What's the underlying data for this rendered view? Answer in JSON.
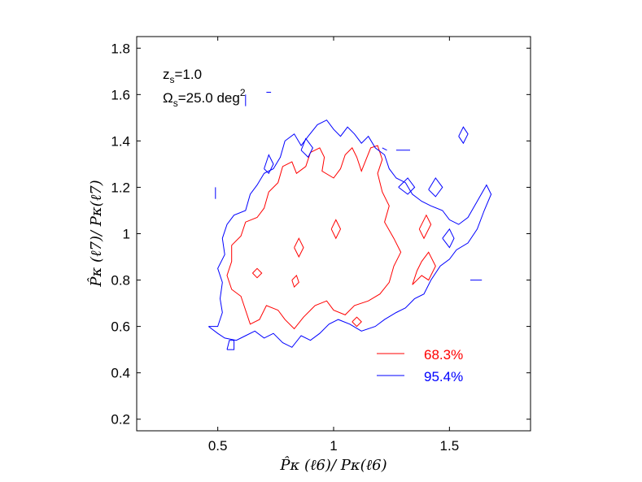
{
  "chart_data": {
    "type": "line",
    "title": "",
    "xlabel": "P̂κ (ℓ6)/ Pκ(ℓ6)",
    "ylabel": "P̂κ (ℓ7)/ Pκ(ℓ7)",
    "xlim": [
      0.15,
      1.85
    ],
    "ylim": [
      0.15,
      1.85
    ],
    "x_ticks": [
      0.5,
      1,
      1.5
    ],
    "x_tick_labels": [
      "0.5",
      "1",
      "1.5"
    ],
    "y_ticks": [
      0.2,
      0.4,
      0.6,
      0.8,
      1.0,
      1.2,
      1.4,
      1.6,
      1.8
    ],
    "y_tick_labels": [
      "0.2",
      "0.4",
      "0.6",
      "0.8",
      "1",
      "1.2",
      "1.4",
      "1.6",
      "1.8"
    ],
    "grid": false,
    "annotations": {
      "redshift": {
        "main": "z",
        "sub": "s",
        "rest": "=1.0"
      },
      "area": {
        "main": "Ω",
        "sub": "s",
        "rest": "=25.0 deg",
        "sup": "2"
      }
    },
    "legend_position": "bottom-right",
    "series": [
      {
        "name": "68.3%",
        "color": "#ff0000",
        "contours": [
          [
            [
              0.56,
              0.95
            ],
            [
              0.6,
              0.99
            ],
            [
              0.62,
              1.05
            ],
            [
              0.67,
              1.07
            ],
            [
              0.7,
              1.11
            ],
            [
              0.72,
              1.18
            ],
            [
              0.76,
              1.22
            ],
            [
              0.78,
              1.29
            ],
            [
              0.82,
              1.31
            ],
            [
              0.84,
              1.26
            ],
            [
              0.88,
              1.29
            ],
            [
              0.9,
              1.35
            ],
            [
              0.94,
              1.37
            ],
            [
              0.96,
              1.33
            ],
            [
              0.95,
              1.27
            ],
            [
              1.0,
              1.24
            ],
            [
              1.03,
              1.28
            ],
            [
              1.05,
              1.34
            ],
            [
              1.08,
              1.37
            ],
            [
              1.1,
              1.33
            ],
            [
              1.12,
              1.27
            ],
            [
              1.14,
              1.32
            ],
            [
              1.16,
              1.37
            ],
            [
              1.19,
              1.38
            ],
            [
              1.21,
              1.32
            ],
            [
              1.19,
              1.26
            ],
            [
              1.21,
              1.18
            ],
            [
              1.24,
              1.12
            ],
            [
              1.22,
              1.05
            ],
            [
              1.26,
              0.98
            ],
            [
              1.29,
              0.92
            ],
            [
              1.26,
              0.86
            ],
            [
              1.24,
              0.79
            ],
            [
              1.2,
              0.74
            ],
            [
              1.15,
              0.71
            ],
            [
              1.09,
              0.69
            ],
            [
              1.05,
              0.65
            ],
            [
              1.0,
              0.67
            ],
            [
              0.97,
              0.71
            ],
            [
              0.92,
              0.69
            ],
            [
              0.87,
              0.64
            ],
            [
              0.83,
              0.59
            ],
            [
              0.79,
              0.63
            ],
            [
              0.76,
              0.67
            ],
            [
              0.71,
              0.69
            ],
            [
              0.68,
              0.63
            ],
            [
              0.64,
              0.61
            ],
            [
              0.62,
              0.67
            ],
            [
              0.6,
              0.73
            ],
            [
              0.56,
              0.76
            ],
            [
              0.54,
              0.82
            ],
            [
              0.56,
              0.88
            ],
            [
              0.56,
              0.95
            ]
          ],
          [
            [
              0.83,
              0.94
            ],
            [
              0.85,
              0.98
            ],
            [
              0.87,
              0.94
            ],
            [
              0.85,
              0.9
            ],
            [
              0.83,
              0.94
            ]
          ],
          [
            [
              0.99,
              1.02
            ],
            [
              1.01,
              1.06
            ],
            [
              1.03,
              1.02
            ],
            [
              1.01,
              0.98
            ],
            [
              0.99,
              1.02
            ]
          ],
          [
            [
              0.65,
              0.83
            ],
            [
              0.67,
              0.85
            ],
            [
              0.69,
              0.83
            ],
            [
              0.67,
              0.81
            ],
            [
              0.65,
              0.83
            ]
          ],
          [
            [
              0.82,
              0.8
            ],
            [
              0.84,
              0.82
            ],
            [
              0.85,
              0.79
            ],
            [
              0.83,
              0.77
            ],
            [
              0.82,
              0.8
            ]
          ],
          [
            [
              1.08,
              0.62
            ],
            [
              1.1,
              0.64
            ],
            [
              1.12,
              0.62
            ],
            [
              1.1,
              0.6
            ],
            [
              1.08,
              0.62
            ]
          ],
          [
            [
              1.34,
              0.78
            ],
            [
              1.38,
              0.82
            ],
            [
              1.41,
              0.8
            ],
            [
              1.44,
              0.86
            ],
            [
              1.41,
              0.92
            ],
            [
              1.38,
              0.88
            ],
            [
              1.36,
              0.84
            ],
            [
              1.34,
              0.78
            ]
          ],
          [
            [
              1.37,
              1.02
            ],
            [
              1.4,
              1.08
            ],
            [
              1.42,
              1.04
            ],
            [
              1.39,
              0.98
            ],
            [
              1.37,
              1.02
            ]
          ]
        ]
      },
      {
        "name": "95.4%",
        "color": "#0000ff",
        "contours": [
          [
            [
              0.46,
              0.6
            ],
            [
              0.5,
              0.6
            ],
            [
              0.52,
              0.66
            ],
            [
              0.51,
              0.72
            ],
            [
              0.52,
              0.79
            ],
            [
              0.5,
              0.85
            ],
            [
              0.53,
              0.91
            ],
            [
              0.52,
              0.98
            ],
            [
              0.54,
              1.04
            ],
            [
              0.57,
              1.08
            ],
            [
              0.62,
              1.1
            ],
            [
              0.64,
              1.17
            ],
            [
              0.67,
              1.21
            ],
            [
              0.7,
              1.26
            ],
            [
              0.74,
              1.28
            ],
            [
              0.77,
              1.33
            ],
            [
              0.79,
              1.4
            ],
            [
              0.83,
              1.43
            ],
            [
              0.86,
              1.38
            ],
            [
              0.89,
              1.42
            ],
            [
              0.93,
              1.47
            ],
            [
              0.97,
              1.49
            ],
            [
              1.0,
              1.45
            ],
            [
              1.03,
              1.42
            ],
            [
              1.06,
              1.46
            ],
            [
              1.09,
              1.43
            ],
            [
              1.12,
              1.39
            ],
            [
              1.15,
              1.42
            ],
            [
              1.18,
              1.37
            ],
            [
              1.22,
              1.34
            ],
            [
              1.24,
              1.28
            ],
            [
              1.27,
              1.24
            ],
            [
              1.31,
              1.22
            ],
            [
              1.34,
              1.17
            ],
            [
              1.38,
              1.14
            ],
            [
              1.42,
              1.12
            ],
            [
              1.47,
              1.1
            ],
            [
              1.5,
              1.06
            ],
            [
              1.54,
              1.04
            ],
            [
              1.58,
              1.07
            ],
            [
              1.62,
              1.14
            ],
            [
              1.66,
              1.21
            ],
            [
              1.68,
              1.17
            ],
            [
              1.65,
              1.1
            ],
            [
              1.62,
              1.02
            ],
            [
              1.58,
              0.96
            ],
            [
              1.53,
              0.93
            ],
            [
              1.5,
              0.89
            ],
            [
              1.46,
              0.86
            ],
            [
              1.42,
              0.8
            ],
            [
              1.39,
              0.74
            ],
            [
              1.35,
              0.72
            ],
            [
              1.31,
              0.68
            ],
            [
              1.27,
              0.66
            ],
            [
              1.22,
              0.63
            ],
            [
              1.18,
              0.6
            ],
            [
              1.12,
              0.58
            ],
            [
              1.07,
              0.61
            ],
            [
              1.02,
              0.63
            ],
            [
              0.98,
              0.61
            ],
            [
              0.94,
              0.57
            ],
            [
              0.9,
              0.54
            ],
            [
              0.86,
              0.56
            ],
            [
              0.82,
              0.51
            ],
            [
              0.78,
              0.53
            ],
            [
              0.74,
              0.57
            ],
            [
              0.7,
              0.55
            ],
            [
              0.66,
              0.58
            ],
            [
              0.62,
              0.56
            ],
            [
              0.58,
              0.54
            ],
            [
              0.53,
              0.55
            ],
            [
              0.5,
              0.57
            ],
            [
              0.46,
              0.6
            ]
          ],
          [
            [
              0.54,
              0.5
            ],
            [
              0.55,
              0.54
            ],
            [
              0.57,
              0.54
            ],
            [
              0.57,
              0.5
            ],
            [
              0.54,
              0.5
            ]
          ],
          [
            [
              0.7,
              1.28
            ],
            [
              0.72,
              1.34
            ],
            [
              0.74,
              1.3
            ],
            [
              0.72,
              1.26
            ],
            [
              0.7,
              1.28
            ]
          ],
          [
            [
              0.86,
              1.36
            ],
            [
              0.88,
              1.41
            ],
            [
              0.91,
              1.37
            ],
            [
              0.89,
              1.33
            ],
            [
              0.86,
              1.36
            ]
          ],
          [
            [
              1.41,
              1.19
            ],
            [
              1.44,
              1.24
            ],
            [
              1.47,
              1.2
            ],
            [
              1.44,
              1.16
            ],
            [
              1.41,
              1.19
            ]
          ],
          [
            [
              1.28,
              1.2
            ],
            [
              1.32,
              1.24
            ],
            [
              1.35,
              1.2
            ],
            [
              1.32,
              1.17
            ],
            [
              1.28,
              1.2
            ]
          ],
          [
            [
              1.47,
              0.98
            ],
            [
              1.5,
              1.02
            ],
            [
              1.52,
              0.98
            ],
            [
              1.5,
              0.94
            ],
            [
              1.47,
              0.98
            ]
          ],
          [
            [
              1.54,
              1.42
            ],
            [
              1.56,
              1.46
            ],
            [
              1.58,
              1.43
            ],
            [
              1.56,
              1.39
            ],
            [
              1.54,
              1.42
            ]
          ],
          [
            [
              1.21,
              1.37
            ],
            [
              1.23,
              1.36
            ]
          ],
          [
            [
              1.27,
              1.36
            ],
            [
              1.33,
              1.36
            ]
          ],
          [
            [
              0.71,
              1.61
            ],
            [
              0.73,
              1.61
            ]
          ],
          [
            [
              0.62,
              1.55
            ],
            [
              0.62,
              1.6
            ]
          ],
          [
            [
              0.49,
              1.15
            ],
            [
              0.49,
              1.2
            ]
          ],
          [
            [
              1.59,
              0.8
            ],
            [
              1.64,
              0.8
            ]
          ]
        ]
      }
    ]
  }
}
